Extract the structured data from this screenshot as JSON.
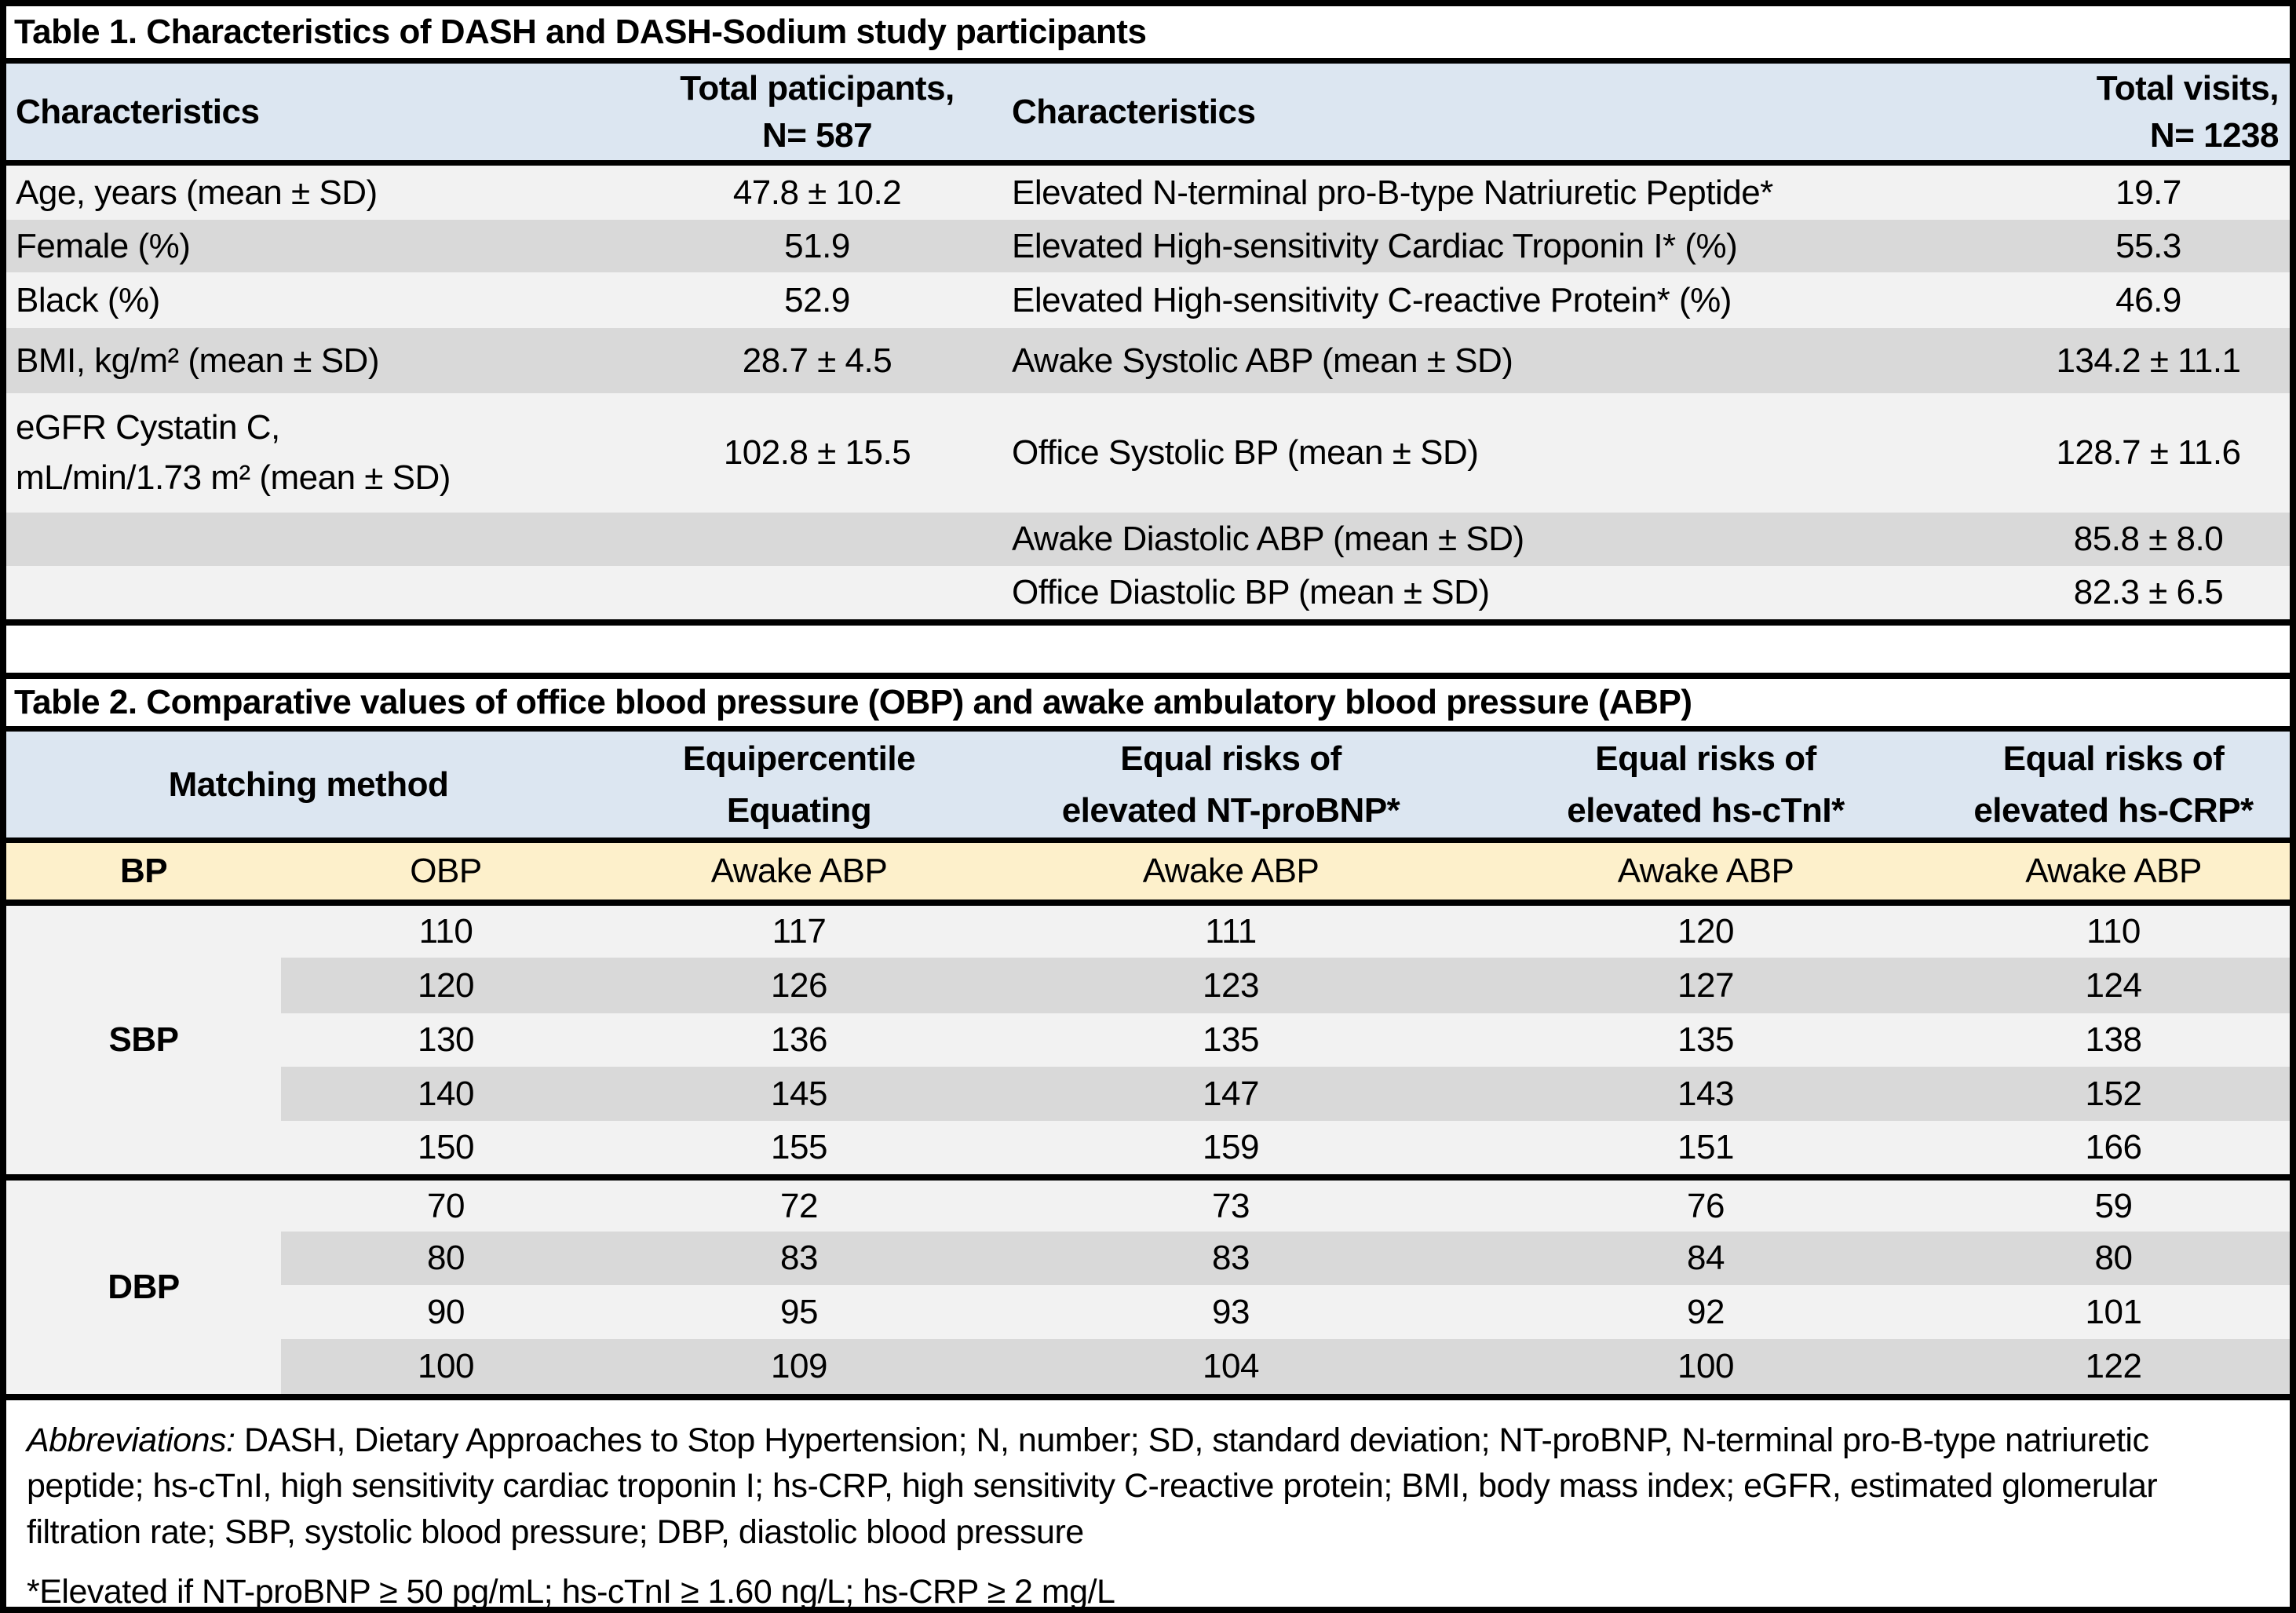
{
  "colors": {
    "header-blue": "#dce6f1",
    "header-yellow": "#fdf0cb",
    "row-light": "#f2f2f2",
    "row-dark": "#d9d9d9",
    "border-black": "#000000"
  },
  "table1": {
    "title": "Table 1. Characteristics of DASH and DASH-Sodium study participants",
    "header": {
      "characteristics_left": "Characteristics",
      "total_participants": "Total paticipants,\nN= 587",
      "characteristics_right": "Characteristics",
      "total_visits": "Total visits,\nN= 1238"
    },
    "rows": [
      {
        "label_left": "Age, years (mean ± SD)",
        "value_left": "47.8 ± 10.2",
        "label_right": "Elevated N-terminal pro-B-type Natriuretic Peptide*",
        "value_right": "19.7"
      },
      {
        "label_left": "Female (%)",
        "value_left": "51.9",
        "label_right": "Elevated High-sensitivity Cardiac Troponin I* (%)",
        "value_right": "55.3"
      },
      {
        "label_left": "Black (%)",
        "value_left": "52.9",
        "label_right": "Elevated High-sensitivity C-reactive Protein* (%)",
        "value_right": "46.9"
      },
      {
        "label_left": "BMI, kg/m² (mean ± SD)",
        "value_left": "28.7 ± 4.5",
        "label_right": "Awake Systolic ABP (mean ± SD)",
        "value_right": "134.2 ± 11.1"
      },
      {
        "label_left": "eGFR Cystatin C,\nmL/min/1.73 m² (mean ± SD)",
        "value_left": "102.8 ± 15.5",
        "label_right": "Office Systolic BP (mean ± SD)",
        "value_right": "128.7 ± 11.6"
      },
      {
        "label_left": "",
        "value_left": "",
        "label_right": "Awake Diastolic ABP (mean ± SD)",
        "value_right": "85.8 ± 8.0"
      },
      {
        "label_left": "",
        "value_left": "",
        "label_right": "Office Diastolic BP (mean ± SD)",
        "value_right": "82.3 ± 6.5"
      }
    ]
  },
  "table2": {
    "title": "Table 2. Comparative values of office blood pressure (OBP) and awake ambulatory blood pressure (ABP)",
    "header": {
      "matching_method": "Matching method",
      "equipercentile": "Equipercentile\nEquating",
      "nt_probnp": "Equal risks of\nelevated NT-proBNP*",
      "hs_ctni": "Equal risks of\nelevated hs-cTnI*",
      "hs_crp": "Equal risks of\nelevated hs-CRP*"
    },
    "subheader": {
      "bp": "BP",
      "obp": "OBP",
      "awake_abp": "Awake ABP"
    },
    "sbp": {
      "label": "SBP",
      "rows": [
        [
          "110",
          "117",
          "111",
          "120",
          "110"
        ],
        [
          "120",
          "126",
          "123",
          "127",
          "124"
        ],
        [
          "130",
          "136",
          "135",
          "135",
          "138"
        ],
        [
          "140",
          "145",
          "147",
          "143",
          "152"
        ],
        [
          "150",
          "155",
          "159",
          "151",
          "166"
        ]
      ]
    },
    "dbp": {
      "label": "DBP",
      "rows": [
        [
          "70",
          "72",
          "73",
          "76",
          "59"
        ],
        [
          "80",
          "83",
          "83",
          "84",
          "80"
        ],
        [
          "90",
          "95",
          "93",
          "92",
          "101"
        ],
        [
          "100",
          "109",
          "104",
          "100",
          "122"
        ]
      ]
    }
  },
  "footnotes": {
    "abbreviations_label": "Abbreviations:",
    "abbreviations_text": " DASH, Dietary Approaches to Stop Hypertension; N, number; SD, standard deviation; NT-proBNP, N-terminal pro-B-type natriuretic peptide; hs-cTnI, high sensitivity cardiac troponin I; hs-CRP, high sensitivity C-reactive protein; BMI, body mass index; eGFR, estimated glomerular filtration rate; SBP, systolic blood pressure; DBP, diastolic blood pressure",
    "elevated_note": "*Elevated if NT-proBNP ≥ 50 pg/mL; hs-cTnI ≥ 1.60 ng/L; hs-CRP ≥ 2 mg/L"
  }
}
